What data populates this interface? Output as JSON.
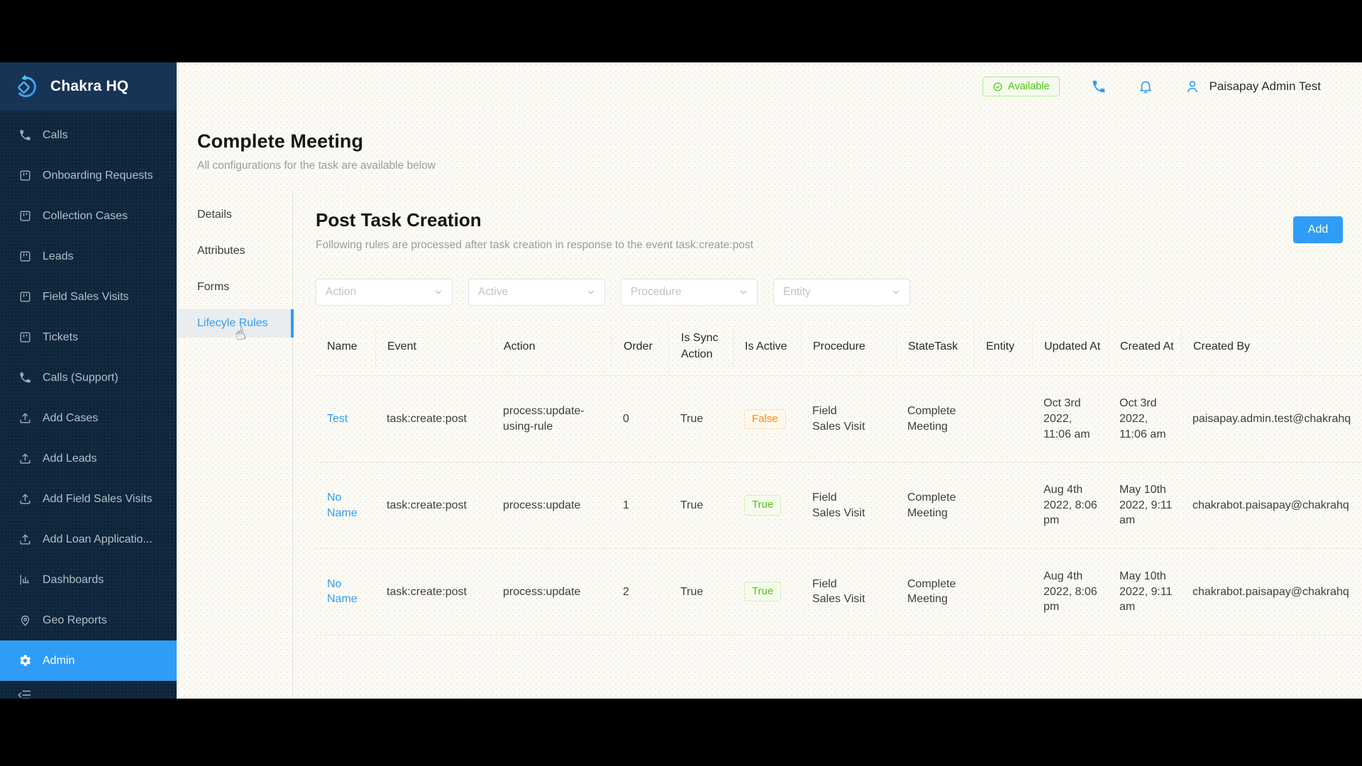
{
  "app_title": "Chakra HQ",
  "sidebar": {
    "items": [
      {
        "label": "Calls",
        "icon": "phone"
      },
      {
        "label": "Onboarding Requests",
        "icon": "board"
      },
      {
        "label": "Collection Cases",
        "icon": "board"
      },
      {
        "label": "Leads",
        "icon": "board"
      },
      {
        "label": "Field Sales Visits",
        "icon": "board"
      },
      {
        "label": "Tickets",
        "icon": "board"
      },
      {
        "label": "Calls (Support)",
        "icon": "phone"
      },
      {
        "label": "Add Cases",
        "icon": "upload"
      },
      {
        "label": "Add Leads",
        "icon": "upload"
      },
      {
        "label": "Add Field Sales Visits",
        "icon": "upload"
      },
      {
        "label": "Add Loan Applicatio...",
        "icon": "upload"
      },
      {
        "label": "Dashboards",
        "icon": "chart"
      },
      {
        "label": "Geo Reports",
        "icon": "pin"
      },
      {
        "label": "Admin",
        "icon": "gear",
        "active": true
      }
    ]
  },
  "topbar": {
    "status_label": "Available",
    "user_name": "Paisapay Admin Test"
  },
  "page": {
    "title": "Complete Meeting",
    "subtitle": "All configurations for the task are available below"
  },
  "subnav": {
    "items": [
      {
        "label": "Details"
      },
      {
        "label": "Attributes"
      },
      {
        "label": "Forms"
      },
      {
        "label": "Lifecyle Rules",
        "active": true
      }
    ]
  },
  "panel": {
    "title": "Post Task Creation",
    "subtitle": "Following rules are processed after task creation in response to the event task:create:post",
    "add_label": "Add",
    "filters": [
      {
        "placeholder": "Action"
      },
      {
        "placeholder": "Active"
      },
      {
        "placeholder": "Procedure"
      },
      {
        "placeholder": "Entity"
      }
    ]
  },
  "table": {
    "columns": [
      "Name",
      "Event",
      "Action",
      "Order",
      "Is Sync Action",
      "Is Active",
      "Procedure",
      "StateTask",
      "Entity",
      "Updated At",
      "Created At",
      "Created By"
    ],
    "rows": [
      {
        "name": "Test",
        "event": "task:create:post",
        "action": "process:update-using-rule",
        "order": "0",
        "is_sync_action": "True",
        "is_active": "False",
        "procedure": "Field Sales Visit",
        "statetask": "Complete Meeting",
        "entity": "",
        "updated_at": "Oct 3rd 2022, 11:06 am",
        "created_at": "Oct 3rd 2022, 11:06 am",
        "created_by": "paisapay.admin.test@chakrahq"
      },
      {
        "name": "No Name",
        "event": "task:create:post",
        "action": "process:update",
        "order": "1",
        "is_sync_action": "True",
        "is_active": "True",
        "procedure": "Field Sales Visit",
        "statetask": "Complete Meeting",
        "entity": "",
        "updated_at": "Aug 4th 2022, 8:06 pm",
        "created_at": "May 10th 2022, 9:11 am",
        "created_by": "chakrabot.paisapay@chakrahq"
      },
      {
        "name": "No Name",
        "event": "task:create:post",
        "action": "process:update",
        "order": "2",
        "is_sync_action": "True",
        "is_active": "True",
        "procedure": "Field Sales Visit",
        "statetask": "Complete Meeting",
        "entity": "",
        "updated_at": "Aug 4th 2022, 8:06 pm",
        "created_at": "May 10th 2022, 9:11 am",
        "created_by": "chakrabot.paisapay@chakrahq"
      }
    ]
  },
  "colors": {
    "accent": "#2F9DF5",
    "success": "#52C41A",
    "warning": "#FA8C16",
    "sidebar_bg": "#112A41"
  }
}
